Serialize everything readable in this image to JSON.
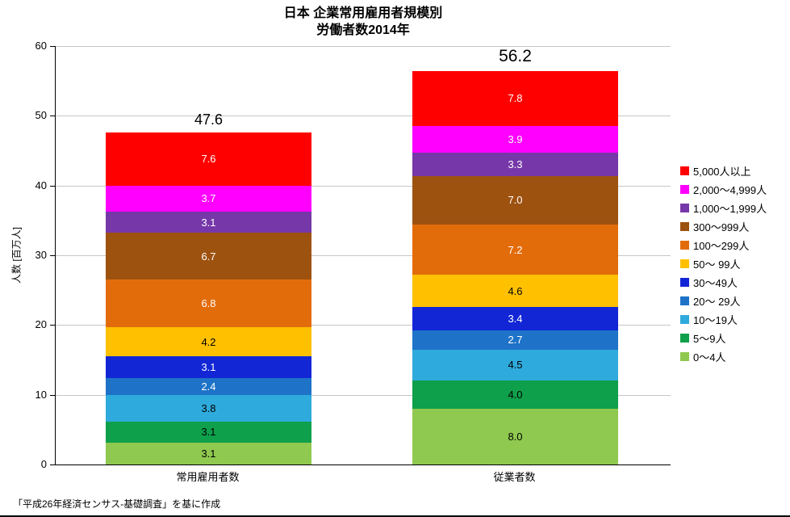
{
  "title": {
    "line1": "日本 企業常用雇用者規模別",
    "line2": "労働者数2014年"
  },
  "footnote": "「平成26年経済センサス-基礎調査」を基に作成",
  "chart_data": {
    "type": "bar",
    "stacked": true,
    "title": "日本 企業常用雇用者規模別 労働者数2014年",
    "ylabel": "人数 [百万人]",
    "xlabel": "",
    "ylim": [
      0,
      60
    ],
    "yticks": [
      0,
      10,
      20,
      30,
      40,
      50,
      60
    ],
    "grid": true,
    "legend_position": "right",
    "categories": [
      "常用雇用者数",
      "従業者数"
    ],
    "totals": [
      47.6,
      56.2
    ],
    "series": [
      {
        "name": "0～4人",
        "color": "#8FC94F",
        "label_color": "#000000",
        "values": [
          3.1,
          8.0
        ]
      },
      {
        "name": "5～9人",
        "color": "#0FA04B",
        "label_color": "#000000",
        "values": [
          3.1,
          4.0
        ]
      },
      {
        "name": "10～19人",
        "color": "#2FAADC",
        "label_color": "#000000",
        "values": [
          3.8,
          4.5
        ]
      },
      {
        "name": "20～ 29人",
        "color": "#1E73C8",
        "label_color": "#ffffff",
        "values": [
          2.4,
          2.7
        ]
      },
      {
        "name": "30～49人",
        "color": "#1226D6",
        "label_color": "#ffffff",
        "values": [
          3.1,
          3.4
        ]
      },
      {
        "name": "50～ 99人",
        "color": "#FFC000",
        "label_color": "#000000",
        "values": [
          4.2,
          4.6
        ]
      },
      {
        "name": "100～299人",
        "color": "#E36C0A",
        "label_color": "#ffffff",
        "values": [
          6.8,
          7.2
        ]
      },
      {
        "name": "300～999人",
        "color": "#9E5210",
        "label_color": "#ffffff",
        "values": [
          6.7,
          7.0
        ]
      },
      {
        "name": "1,000～1,999人",
        "color": "#7638A8",
        "label_color": "#ffffff",
        "values": [
          3.1,
          3.3
        ]
      },
      {
        "name": "2,000～4,999人",
        "color": "#FF00FF",
        "label_color": "#ffffff",
        "values": [
          3.7,
          3.9
        ]
      },
      {
        "name": "5,000人以上",
        "color": "#FF0000",
        "label_color": "#ffffff",
        "values": [
          7.6,
          7.8
        ]
      }
    ]
  }
}
